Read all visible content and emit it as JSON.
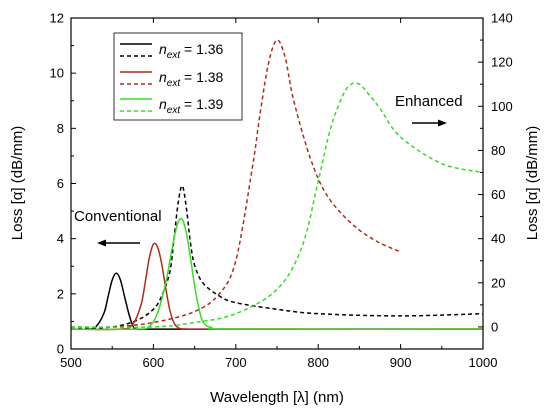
{
  "chart_data": {
    "type": "line",
    "xlabel": "Wavelength [λ] (nm)",
    "ylabel_left": "Loss [α] (dB/mm)",
    "ylabel_right": "Loss [α] (dB/mm)",
    "xlim": [
      500,
      1000
    ],
    "ylim_left": [
      0,
      12
    ],
    "ylim_right": [
      -10,
      140
    ],
    "x_ticks": [
      "500",
      "600",
      "700",
      "800",
      "900",
      "1000"
    ],
    "y_left_ticks": [
      "0",
      "2",
      "4",
      "6",
      "8",
      "10",
      "12"
    ],
    "y_right_ticks": [
      "0",
      "20",
      "40",
      "60",
      "80",
      "100",
      "120",
      "140"
    ],
    "legend": {
      "placement": "top-left",
      "entries": [
        {
          "symbol": "n",
          "subscript": "ext",
          "value": " = 1.36",
          "color": "#000000"
        },
        {
          "symbol": "n",
          "subscript": "ext",
          "value": " = 1.38",
          "color": "#b22a1a"
        },
        {
          "symbol": "n",
          "subscript": "ext",
          "value": " = 1.39",
          "color": "#33dd22"
        }
      ]
    },
    "annotations": {
      "conventional": "Conventional",
      "enhanced": "Enhanced"
    },
    "series": [
      {
        "color": "#000000",
        "style": "solid",
        "axis": "left",
        "x": [
          500,
          520,
          530,
          540,
          545,
          550,
          555,
          560,
          565,
          570,
          575,
          580,
          600,
          700,
          800,
          1000
        ],
        "y": [
          0.72,
          0.72,
          0.8,
          1.3,
          1.9,
          2.5,
          2.75,
          2.5,
          1.9,
          1.3,
          0.85,
          0.72,
          0.72,
          0.72,
          0.72,
          0.72
        ]
      },
      {
        "color": "#000000",
        "style": "dashed",
        "axis": "right",
        "x": [
          500,
          550,
          580,
          600,
          610,
          620,
          625,
          630,
          635,
          640,
          645,
          650,
          660,
          680,
          700,
          750,
          800,
          900,
          1000
        ],
        "y": [
          -1,
          0,
          3,
          8,
          14,
          25,
          40,
          56,
          64,
          54,
          38,
          28,
          20,
          14,
          11,
          8,
          6,
          5,
          6
        ]
      },
      {
        "color": "#b22a1a",
        "style": "solid",
        "axis": "left",
        "x": [
          500,
          560,
          575,
          585,
          590,
          595,
          600,
          605,
          610,
          615,
          620,
          625,
          630,
          640,
          700,
          1000
        ],
        "y": [
          0.72,
          0.72,
          0.9,
          1.6,
          2.4,
          3.3,
          3.8,
          3.7,
          3.1,
          2.2,
          1.4,
          0.95,
          0.78,
          0.72,
          0.72,
          0.72
        ]
      },
      {
        "color": "#b22a1a",
        "style": "dashed",
        "axis": "right",
        "x": [
          500,
          550,
          600,
          650,
          680,
          700,
          720,
          730,
          740,
          750,
          760,
          770,
          790,
          810,
          840,
          870,
          900
        ],
        "y": [
          0,
          0,
          2,
          7,
          15,
          30,
          72,
          98,
          120,
          130,
          122,
          103,
          77,
          60,
          47,
          39,
          34
        ]
      },
      {
        "color": "#33dd22",
        "style": "solid",
        "axis": "left",
        "x": [
          500,
          580,
          595,
          605,
          615,
          620,
          625,
          630,
          635,
          640,
          645,
          650,
          655,
          660,
          670,
          700,
          1000
        ],
        "y": [
          0.72,
          0.72,
          0.82,
          1.3,
          2.4,
          3.2,
          4.0,
          4.6,
          4.7,
          4.2,
          3.3,
          2.3,
          1.5,
          1.0,
          0.78,
          0.72,
          0.72
        ]
      },
      {
        "color": "#33dd22",
        "style": "dashed",
        "axis": "right",
        "x": [
          500,
          600,
          650,
          700,
          750,
          780,
          800,
          815,
          830,
          840,
          850,
          860,
          875,
          900,
          950,
          1000
        ],
        "y": [
          0,
          0,
          2,
          6,
          17,
          36,
          66,
          90,
          105,
          110,
          110,
          106,
          99,
          86,
          74,
          70
        ]
      }
    ]
  }
}
